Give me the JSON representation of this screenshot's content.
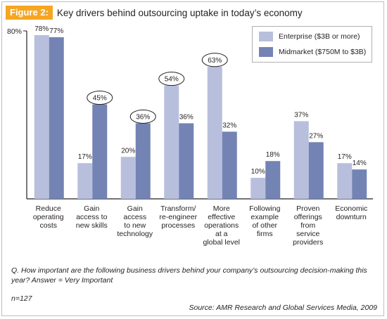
{
  "figure": {
    "label": "Figure 2:",
    "title": "Key drivers behind outsourcing uptake in today’s economy"
  },
  "question": "Q. How important are the following business drivers behind your company’s outsourcing decision-making this year? Answer = Very Important",
  "n_note": "n=127",
  "source": "Source: AMR Research and Global Services Media, 2009",
  "colors": {
    "enterprise": "#b8bfdc",
    "midmarket": "#7383b3",
    "axis": "#231f20",
    "label_bg": "#f5a623"
  },
  "chart_data": {
    "type": "bar",
    "ylim": [
      0,
      80
    ],
    "y_tick_label": "80%",
    "grid": false,
    "legend_position": "top-right",
    "categories": [
      [
        "Reduce",
        "operating",
        "costs"
      ],
      [
        "Gain",
        "access to",
        "new skills"
      ],
      [
        "Gain",
        "access",
        "to new",
        "technology"
      ],
      [
        "Transform/",
        "re-engineer",
        "processes"
      ],
      [
        "More",
        "effective",
        "operations",
        "at a",
        "global level"
      ],
      [
        "Following",
        "example",
        "of other",
        "firms"
      ],
      [
        "Proven",
        "offerings",
        "from",
        "service",
        "providers"
      ],
      [
        "Economic",
        "downturn"
      ]
    ],
    "series": [
      {
        "name": "Enterprise ($3B or more)",
        "values": [
          78,
          17,
          20,
          54,
          63,
          10,
          37,
          17
        ]
      },
      {
        "name": "Midmarket ($750M to $3B)",
        "values": [
          77,
          45,
          36,
          36,
          32,
          18,
          27,
          14
        ]
      }
    ],
    "value_suffix": "%",
    "highlighted": [
      {
        "series": 1,
        "index": 1
      },
      {
        "series": 1,
        "index": 2
      },
      {
        "series": 0,
        "index": 3
      },
      {
        "series": 0,
        "index": 4
      }
    ]
  }
}
